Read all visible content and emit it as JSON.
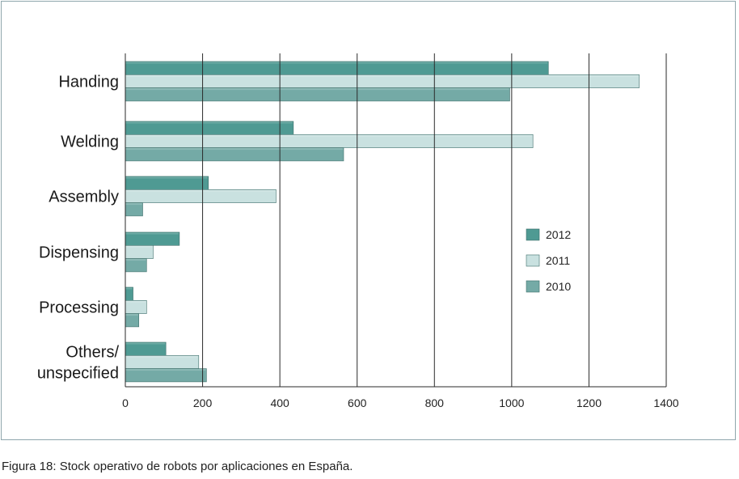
{
  "caption": "Figura 18: Stock operativo de robots por aplicaciones en España.",
  "colors": {
    "2012": "#4f9a93",
    "2011": "#c9e1e0",
    "2010": "#74aaa6",
    "gridline": "#2a2a2a",
    "axis_text": "#222222"
  },
  "chart_data": {
    "type": "bar",
    "orientation": "horizontal",
    "categories": [
      "Handing",
      "Welding",
      "Assembly",
      "Dispensing",
      "Processing",
      "Others/ unspecified"
    ],
    "category_lines": [
      [
        "Handing"
      ],
      [
        "Welding"
      ],
      [
        "Assembly"
      ],
      [
        "Dispensing"
      ],
      [
        "Processing"
      ],
      [
        "Others/",
        "unspecified"
      ]
    ],
    "series": [
      {
        "name": "2012",
        "values": [
          1095,
          435,
          215,
          140,
          20,
          105
        ]
      },
      {
        "name": "2011",
        "values": [
          1330,
          1055,
          390,
          72,
          55,
          190
        ]
      },
      {
        "name": "2010",
        "values": [
          995,
          565,
          45,
          55,
          35,
          210
        ]
      }
    ],
    "xlim": [
      0,
      1400
    ],
    "xticks": [
      0,
      200,
      400,
      600,
      800,
      1000,
      1200,
      1400
    ],
    "grid": true,
    "legend_position": "right",
    "title": "",
    "xlabel": "",
    "ylabel": ""
  }
}
